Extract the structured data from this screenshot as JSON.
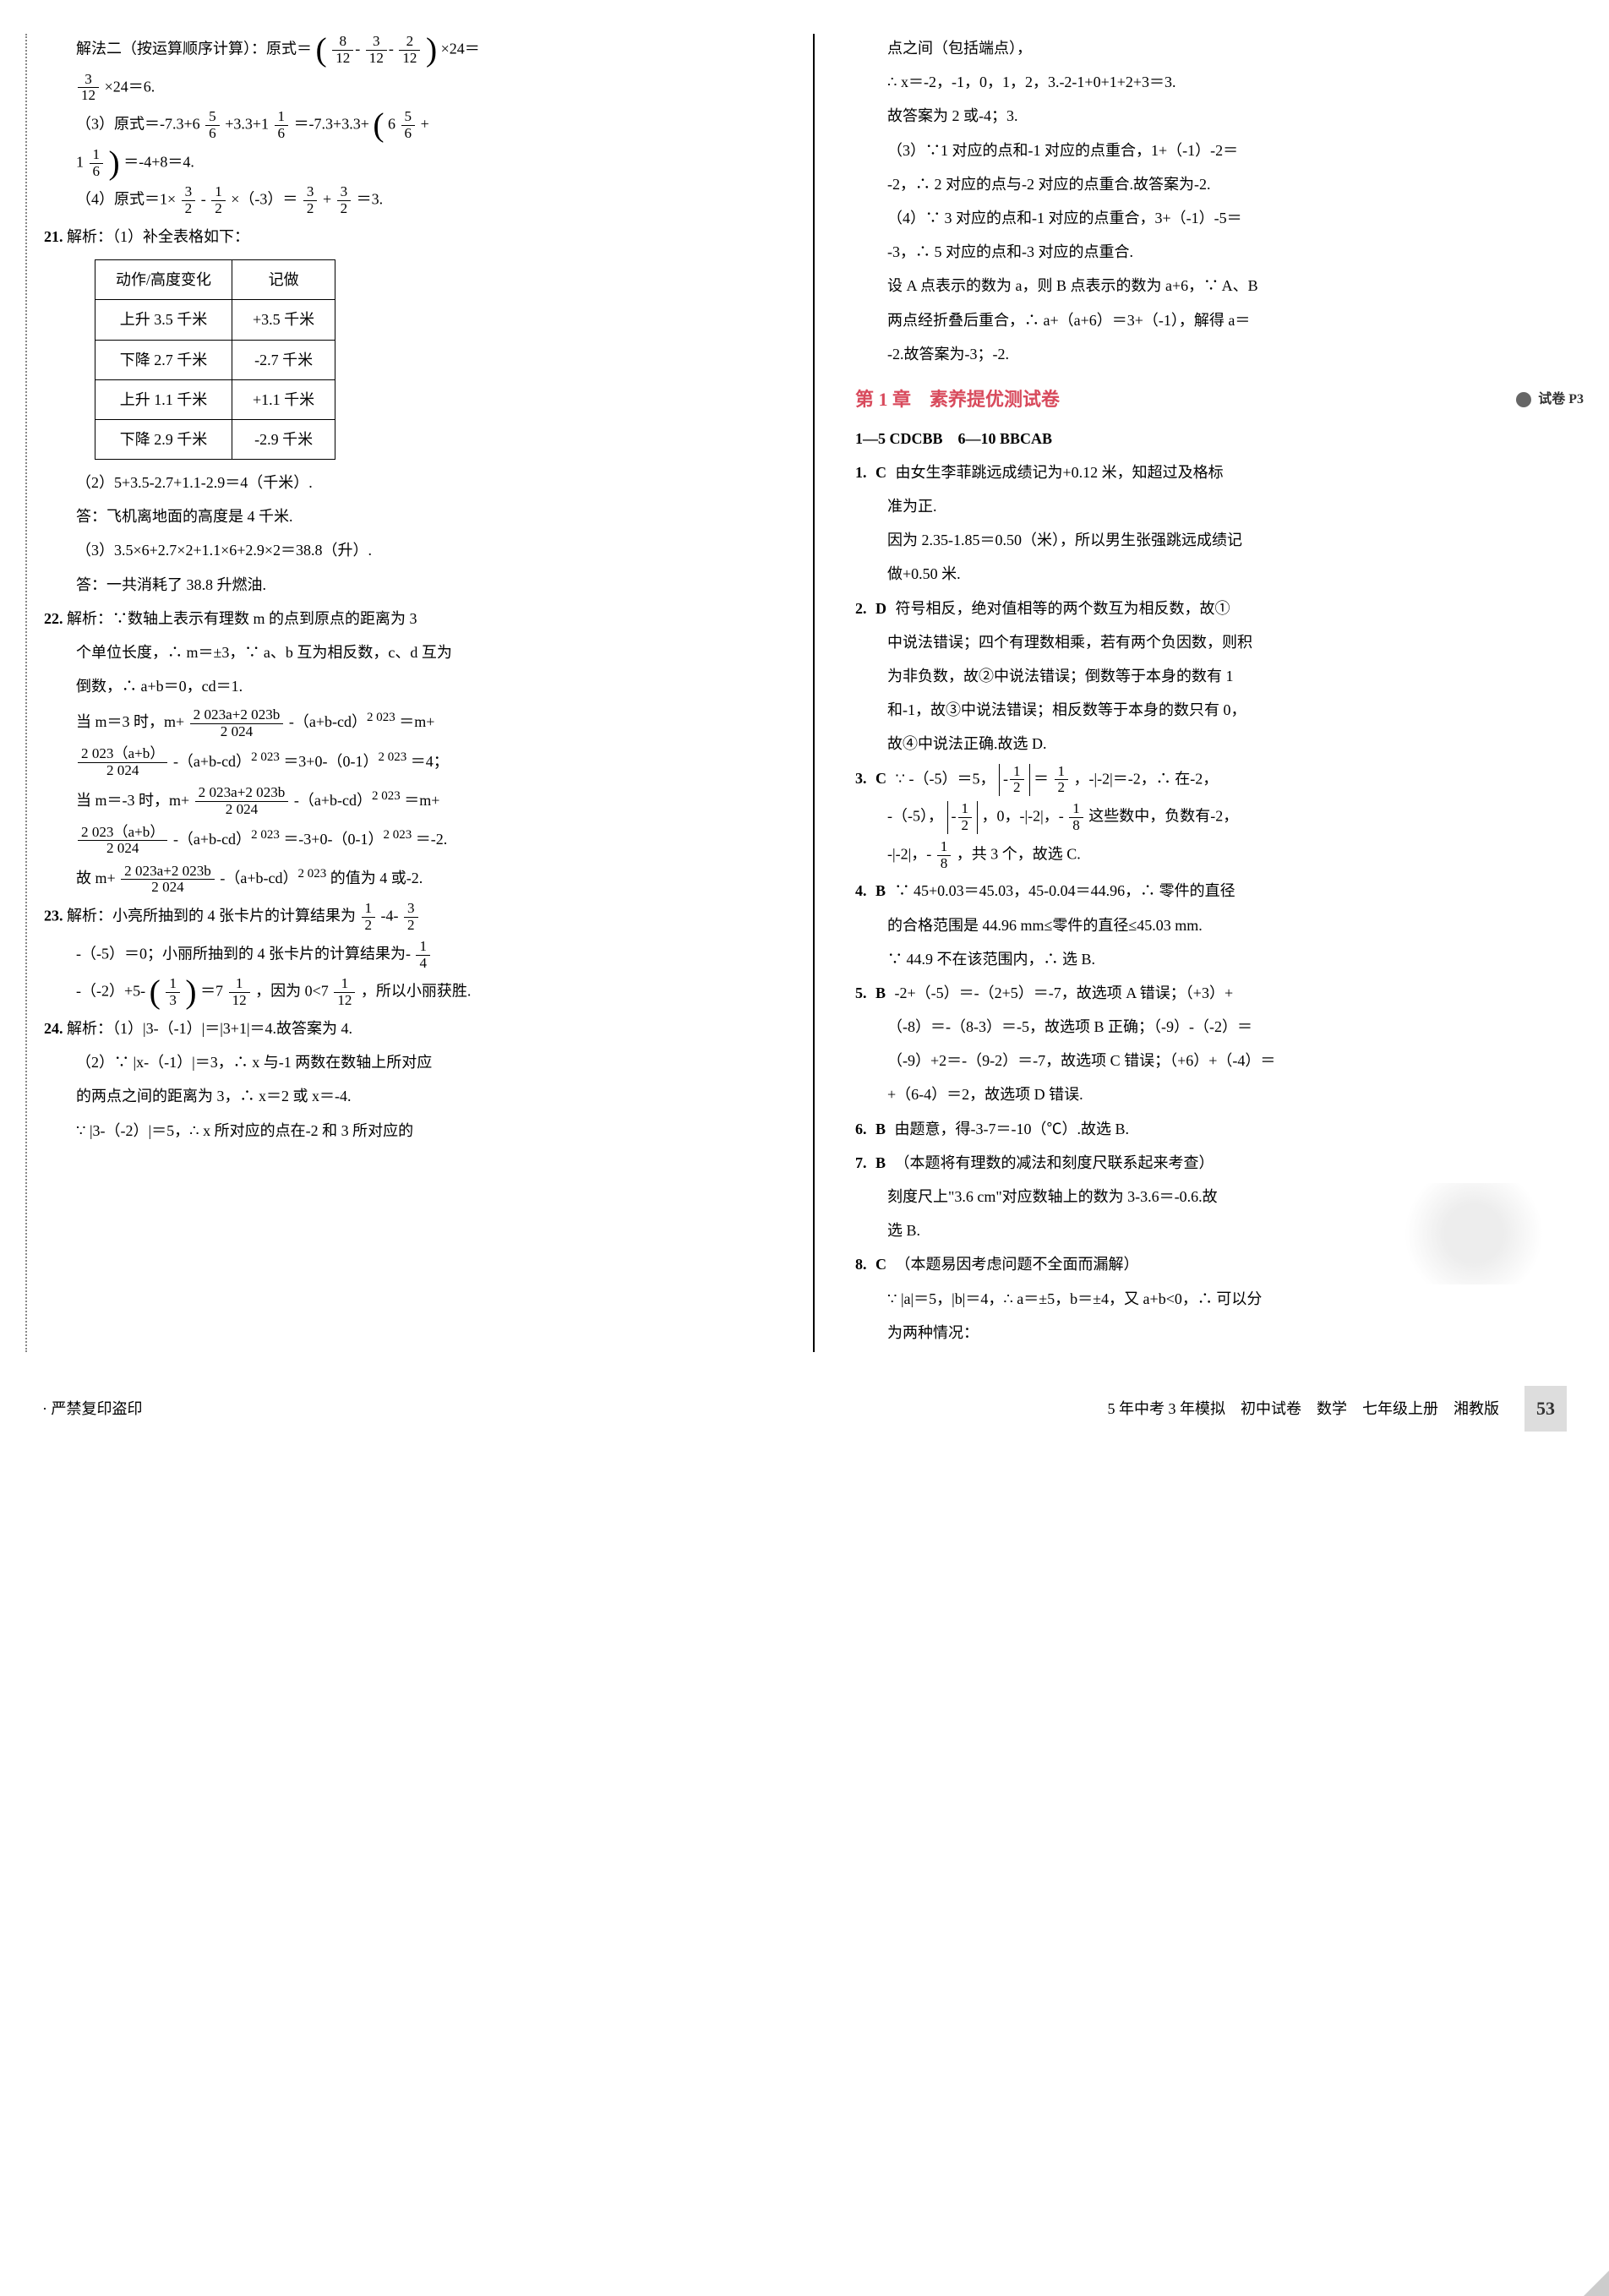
{
  "left_column": {
    "p20_line1_a": "解法二（按运算顺序计算）：原式＝",
    "p20_line1_b": "×24＝",
    "frac_8_12": {
      "n": "8",
      "d": "12"
    },
    "frac_3_12_a": {
      "n": "3",
      "d": "12"
    },
    "frac_2_12": {
      "n": "2",
      "d": "12"
    },
    "p20_line2_a": "×24＝6.",
    "frac_3_12_b": {
      "n": "3",
      "d": "12"
    },
    "p20_3_a": "（3）原式＝-7.3+6",
    "p20_3_b": "+3.3+1",
    "p20_3_c": "＝-7.3+3.3+",
    "p20_3_d": "6",
    "p20_3_e": "+",
    "frac_5_6_a": {
      "n": "5",
      "d": "6"
    },
    "frac_1_6_a": {
      "n": "1",
      "d": "6"
    },
    "frac_5_6_b": {
      "n": "5",
      "d": "6"
    },
    "p20_3_line2_a": "1",
    "p20_3_line2_b": "＝-4+8＝4.",
    "frac_1_6_b": {
      "n": "1",
      "d": "6"
    },
    "p20_4_a": "（4）原式＝1×",
    "p20_4_b": "-",
    "p20_4_c": "×（-3）＝",
    "p20_4_d": "+",
    "p20_4_e": "＝3.",
    "frac_3_2_a": {
      "n": "3",
      "d": "2"
    },
    "frac_1_2_a": {
      "n": "1",
      "d": "2"
    },
    "frac_3_2_b": {
      "n": "3",
      "d": "2"
    },
    "frac_3_2_c": {
      "n": "3",
      "d": "2"
    },
    "q21_label": "21.",
    "q21_head": "解析：（1）补全表格如下：",
    "table": {
      "header": [
        "动作/高度变化",
        "记做"
      ],
      "rows": [
        [
          "上升 3.5 千米",
          "+3.5 千米"
        ],
        [
          "下降 2.7 千米",
          "-2.7 千米"
        ],
        [
          "上升 1.1 千米",
          "+1.1 千米"
        ],
        [
          "下降 2.9 千米",
          "-2.9 千米"
        ]
      ]
    },
    "q21_2": "（2）5+3.5-2.7+1.1-2.9＝4（千米）.",
    "q21_2b": "答：飞机离地面的高度是 4 千米.",
    "q21_3": "（3）3.5×6+2.7×2+1.1×6+2.9×2＝38.8（升）.",
    "q21_3b": "答：一共消耗了 38.8 升燃油.",
    "q22_label": "22.",
    "q22_head": "解析：∵数轴上表示有理数 m 的点到原点的距离为 3",
    "q22_l2": "个单位长度，∴ m＝±3，∵ a、b 互为相反数，c、d 互为",
    "q22_l3": "倒数，∴ a+b＝0，cd＝1.",
    "q22_l4_a": "当 m＝3 时，m+",
    "q22_l4_b": "-（a+b-cd）",
    "q22_l4_c": "＝m+",
    "q22_sup_2023": "2 023",
    "frac_big1": {
      "n": "2 023a+2 023b",
      "d": "2 024"
    },
    "q22_l5_a": "-（a+b-cd）",
    "q22_l5_b": "＝3+0-（0-1）",
    "q22_l5_c": "＝4；",
    "frac_big2": {
      "n": "2 023（a+b）",
      "d": "2 024"
    },
    "q22_l6_a": "当 m＝-3 时，m+",
    "q22_l6_b": "-（a+b-cd）",
    "q22_l6_c": "＝m+",
    "q22_l7_a": "-（a+b-cd）",
    "q22_l7_b": "＝-3+0-（0-1）",
    "q22_l7_c": "＝-2.",
    "q22_l8_a": "故 m+",
    "q22_l8_b": "-（a+b-cd）",
    "q22_l8_c": "的值为 4 或-2.",
    "q23_label": "23.",
    "q23_a": "解析：小亮所抽到的 4 张卡片的计算结果为",
    "q23_b": "-4-",
    "frac_1_2_b": {
      "n": "1",
      "d": "2"
    },
    "frac_3_2_d": {
      "n": "3",
      "d": "2"
    },
    "q23_l2_a": "-（-5）＝0；小丽所抽到的 4 张卡片的计算结果为-",
    "frac_1_4": {
      "n": "1",
      "d": "4"
    },
    "q23_l3_a": "-（-2）+5-",
    "q23_l3_b": "＝7",
    "q23_l3_c": "，因为 0<7",
    "q23_l3_d": "，所以小丽获胜.",
    "frac_1_3": {
      "n": "1",
      "d": "3"
    },
    "frac_1_12_a": {
      "n": "1",
      "d": "12"
    },
    "frac_1_12_b": {
      "n": "1",
      "d": "12"
    },
    "q24_label": "24.",
    "q24_1": "解析：（1）|3-（-1）|＝|3+1|＝4.故答案为 4.",
    "q24_2a": "（2）∵ |x-（-1）|＝3，∴ x 与-1 两数在数轴上所对应",
    "q24_2b": "的两点之间的距离为 3，∴ x＝2 或 x＝-4.",
    "q24_2c": "∵ |3-（-2）|＝5，∴ x 所对应的点在-2 和 3 所对应的"
  },
  "right_column": {
    "r_l1": "点之间（包括端点），",
    "r_l2": "∴ x＝-2，-1，0，1，2，3.-2-1+0+1+2+3＝3.",
    "r_l3": "故答案为 2 或-4；3.",
    "r_l4": "（3）∵1 对应的点和-1 对应的点重合，1+（-1）-2＝",
    "r_l5": "-2，∴ 2 对应的点与-2 对应的点重合.故答案为-2.",
    "r_l6": "（4）∵ 3 对应的点和-1 对应的点重合，3+（-1）-5＝",
    "r_l7": "-3，∴ 5 对应的点和-3 对应的点重合.",
    "r_l8": "设 A 点表示的数为 a，则 B 点表示的数为 a+6，∵ A、B",
    "r_l9": "两点经折叠后重合，∴ a+（a+6）＝3+（-1），解得 a＝",
    "r_l10": "-2.故答案为-3；-2.",
    "section_title": "第 1 章　素养提优测试卷",
    "section_tag": "试卷 P3",
    "answer_keys": "1—5 CDCBB　6—10 BBCAB",
    "q1": {
      "num": "1.",
      "ans": "C",
      "l1": "由女生李菲跳远成绩记为+0.12 米，知超过及格标",
      "l2": "准为正.",
      "l3": "因为 2.35-1.85＝0.50（米），所以男生张强跳远成绩记",
      "l4": "做+0.50 米."
    },
    "q2": {
      "num": "2.",
      "ans": "D",
      "l1": "符号相反，绝对值相等的两个数互为相反数，故①",
      "l2": "中说法错误；四个有理数相乘，若有两个负因数，则积",
      "l3": "为非负数，故②中说法错误；倒数等于本身的数有 1",
      "l4": "和-1，故③中说法错误；相反数等于本身的数只有 0，",
      "l5": "故④中说法正确.故选 D."
    },
    "q3": {
      "num": "3.",
      "ans": "C",
      "l1_a": "∵ -（-5）＝5，",
      "l1_b": "＝",
      "l1_c": "，-|-2|＝-2，∴ 在-2，",
      "frac_1_2_c": {
        "n": "1",
        "d": "2"
      },
      "frac_1_2_d": {
        "n": "1",
        "d": "2"
      },
      "l2_a": "-（-5），",
      "l2_b": "，0，-|-2|，-",
      "l2_c": "这些数中，负数有-2，",
      "frac_1_2_e": {
        "n": "1",
        "d": "2"
      },
      "frac_1_8_a": {
        "n": "1",
        "d": "8"
      },
      "l3_a": "-|-2|，-",
      "l3_b": "，共 3 个，故选 C.",
      "frac_1_8_b": {
        "n": "1",
        "d": "8"
      }
    },
    "q4": {
      "num": "4.",
      "ans": "B",
      "l1": "∵ 45+0.03＝45.03，45-0.04＝44.96，∴ 零件的直径",
      "l2": "的合格范围是 44.96 mm≤零件的直径≤45.03 mm.",
      "l3": "∵ 44.9 不在该范围内，∴ 选 B."
    },
    "q5": {
      "num": "5.",
      "ans": "B",
      "l1": "-2+（-5）＝-（2+5）＝-7，故选项 A 错误；（+3）+",
      "l2": "（-8）＝-（8-3）＝-5，故选项 B 正确；（-9）-（-2）＝",
      "l3": "（-9）+2＝-（9-2）＝-7，故选项 C 错误；（+6）+（-4）＝",
      "l4": "+（6-4）＝2，故选项 D 错误."
    },
    "q6": {
      "num": "6.",
      "ans": "B",
      "l1": "由题意，得-3-7＝-10（℃）.故选 B."
    },
    "q7": {
      "num": "7.",
      "ans": "B",
      "l1": "（本题将有理数的减法和刻度尺联系起来考查）",
      "l2": "刻度尺上\"3.6 cm\"对应数轴上的数为 3-3.6＝-0.6.故",
      "l3": "选 B."
    },
    "q8": {
      "num": "8.",
      "ans": "C",
      "l1": "（本题易因考虑问题不全面而漏解）",
      "l2": "∵ |a|＝5，|b|＝4，∴ a＝±5，b＝±4，又 a+b<0，∴ 可以分",
      "l3": "为两种情况："
    }
  },
  "footer": {
    "left": "· 严禁复印盗印",
    "center": "5 年中考 3 年模拟　初中试卷　数学　七年级上册　湘教版",
    "page": "53"
  }
}
